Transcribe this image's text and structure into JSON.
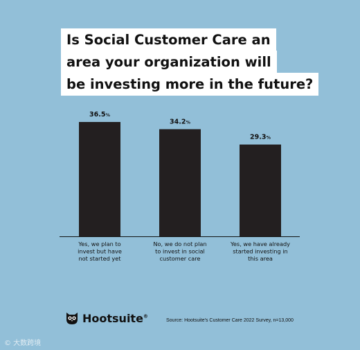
{
  "title_lines": [
    "Is Social Customer Care an",
    "area your organization will",
    "be investing more in the future?"
  ],
  "chart_data": {
    "type": "bar",
    "title": "Is Social Customer Care an area your organization will be investing more in the future?",
    "categories": [
      [
        "Yes, we plan to",
        "invest but have",
        "not started yet"
      ],
      [
        "No, we do not plan",
        "to invest in social",
        "customer care"
      ],
      [
        "Yes, we have already",
        "started investing in",
        "this area"
      ]
    ],
    "values": [
      36.5,
      34.2,
      29.3
    ],
    "value_labels": [
      "36.5",
      "34.2",
      "29.3"
    ],
    "unit": "%",
    "ylim": [
      0,
      36.5
    ],
    "bar_color": "#231f20",
    "grid": false,
    "legend": "none"
  },
  "logo": {
    "text": "Hootsuite",
    "mark": "®",
    "icon": "owl-icon"
  },
  "source": "Source: Hootsuite's Customer Care 2022 Survey, n=13,000",
  "watermark": "© 大数跨境"
}
